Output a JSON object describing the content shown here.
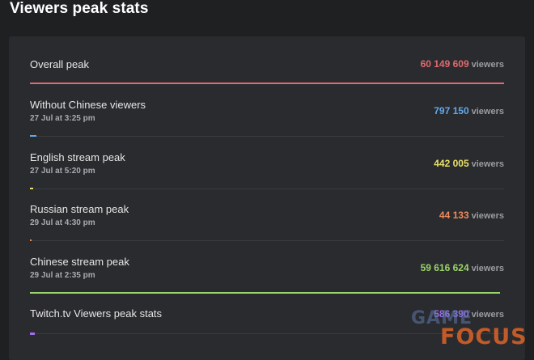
{
  "header": {
    "title": "Viewers peak stats"
  },
  "unit_label": "viewers",
  "stats": [
    {
      "label": "Overall peak",
      "date": "",
      "value": "60 149 609",
      "color": "#e06a6e",
      "fraction": 1.0
    },
    {
      "label": "Without Chinese viewers",
      "date": "27 Jul at 3:25 pm",
      "value": "797 150",
      "color": "#63a8e8",
      "fraction": 0.013
    },
    {
      "label": "English stream peak",
      "date": "27 Jul at 5:20 pm",
      "value": "442 005",
      "color": "#e8e06a",
      "fraction": 0.0073
    },
    {
      "label": "Russian stream peak",
      "date": "29 Jul at 4:30 pm",
      "value": "44 133",
      "color": "#ef8a5c",
      "fraction": 0.0007
    },
    {
      "label": "Chinese stream peak",
      "date": "29 Jul at 2:35 pm",
      "value": "59 616 624",
      "color": "#9ad46a",
      "fraction": 0.991
    },
    {
      "label": "Twitch.tv Viewers peak stats",
      "date": "",
      "value": "586 390",
      "color": "#9c6ee8",
      "fraction": 0.0098
    }
  ],
  "watermark": {
    "line1": "GAME",
    "line2": "FOCUS"
  }
}
